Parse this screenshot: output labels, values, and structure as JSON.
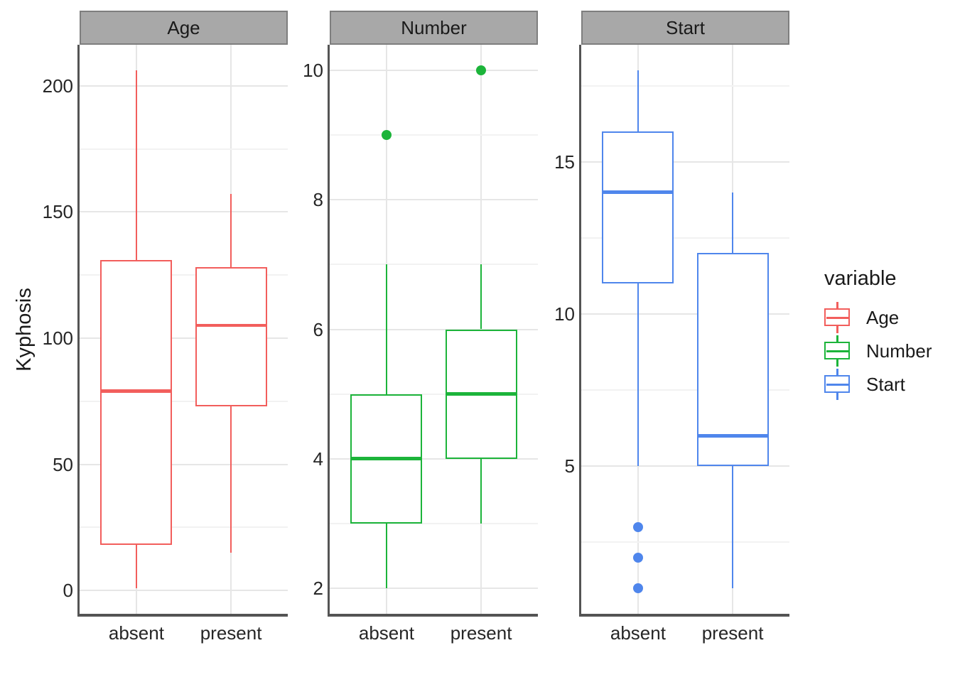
{
  "figure": {
    "y_axis_title": "Kyphosis",
    "x_categories": [
      "absent",
      "present"
    ],
    "background_color": "#FFFFFF",
    "panel_background_color": "#FFFFFF",
    "axis_line_color": "#545454",
    "major_gridline_color": "#E6E6E6",
    "minor_gridline_color": "#F2F2F2",
    "strip_fill_color": "#A8A8A8",
    "strip_border_color": "#7E7E7E",
    "text_color": "#262626"
  },
  "legend": {
    "title": "variable",
    "entries": [
      {
        "label": "Age",
        "color": "#F25E5C",
        "icon": "boxplot-key-icon"
      },
      {
        "label": "Number",
        "color": "#1CB43A",
        "icon": "boxplot-key-icon"
      },
      {
        "label": "Start",
        "color": "#4F86EC",
        "icon": "boxplot-key-icon"
      }
    ]
  },
  "chart_data": {
    "type": "boxplot",
    "title": "",
    "ylabel": "Kyphosis",
    "faceting": "facet_wrap by variable with free y scales",
    "legend_position": "right",
    "grid": "on",
    "categories": [
      "absent",
      "present"
    ],
    "facets": [
      {
        "label": "Age",
        "color": "#F25E5C",
        "ylim": [
          -9.25,
          216.25
        ],
        "y_ticks": [
          0,
          50,
          100,
          150,
          200
        ],
        "y_minor_ticks": [
          25,
          75,
          125,
          175
        ],
        "boxes": [
          {
            "category": "absent",
            "whisker_low": 1,
            "q1": 18,
            "median": 79,
            "q3": 131,
            "whisker_high": 206,
            "outliers": []
          },
          {
            "category": "present",
            "whisker_low": 15,
            "q1": 73,
            "median": 105,
            "q3": 128,
            "whisker_high": 157,
            "outliers": []
          }
        ]
      },
      {
        "label": "Number",
        "color": "#1CB43A",
        "ylim": [
          1.6,
          10.4
        ],
        "y_ticks": [
          2,
          4,
          6,
          8,
          10
        ],
        "y_minor_ticks": [
          3,
          5,
          7,
          9
        ],
        "boxes": [
          {
            "category": "absent",
            "whisker_low": 2,
            "q1": 3,
            "median": 4,
            "q3": 5,
            "whisker_high": 7,
            "outliers": [
              9
            ]
          },
          {
            "category": "present",
            "whisker_low": 3,
            "q1": 4,
            "median": 5,
            "q3": 6,
            "whisker_high": 7,
            "outliers": [
              10
            ]
          }
        ]
      },
      {
        "label": "Start",
        "color": "#4F86EC",
        "ylim": [
          0.15,
          18.85
        ],
        "y_ticks": [
          5,
          10,
          15
        ],
        "y_minor_ticks": [
          2.5,
          7.5,
          12.5,
          17.5
        ],
        "boxes": [
          {
            "category": "absent",
            "whisker_low": 5,
            "q1": 11,
            "median": 14,
            "q3": 16,
            "whisker_high": 18,
            "outliers": [
              3,
              2,
              1
            ]
          },
          {
            "category": "present",
            "whisker_low": 1,
            "q1": 5,
            "median": 6,
            "q3": 12,
            "whisker_high": 14,
            "outliers": []
          }
        ]
      }
    ]
  }
}
